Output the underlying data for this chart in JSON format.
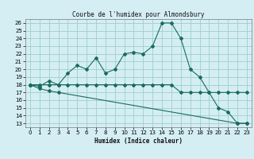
{
  "title": "Courbe de l'humidex pour Almondsbury",
  "xlabel": "Humidex (Indice chaleur)",
  "background_color": "#d4eef4",
  "grid_color": "#9ecfca",
  "line_color": "#1a6b60",
  "xlim": [
    -0.5,
    23.5
  ],
  "ylim": [
    12.5,
    26.5
  ],
  "xticks": [
    0,
    1,
    2,
    3,
    4,
    5,
    6,
    7,
    8,
    9,
    10,
    11,
    12,
    13,
    14,
    15,
    16,
    17,
    18,
    19,
    20,
    21,
    22,
    23
  ],
  "yticks": [
    13,
    14,
    15,
    16,
    17,
    18,
    19,
    20,
    21,
    22,
    23,
    24,
    25,
    26
  ],
  "line1_x": [
    0,
    1,
    2,
    3,
    4,
    5,
    6,
    7,
    8,
    9,
    10,
    11,
    12,
    13,
    14,
    15,
    16,
    17,
    18,
    19,
    20,
    21,
    22,
    23
  ],
  "line1_y": [
    18,
    18,
    18,
    18,
    18,
    18,
    18,
    18,
    18,
    18,
    18,
    18,
    18,
    18,
    18,
    18,
    17,
    17,
    17,
    17,
    17,
    17,
    17,
    17
  ],
  "line2_x": [
    0,
    1,
    2,
    3,
    4,
    5,
    6,
    7,
    8,
    9,
    10,
    11,
    12,
    13,
    14,
    15,
    16,
    17,
    18,
    19,
    20,
    21,
    22,
    23
  ],
  "line2_y": [
    18,
    17.8,
    18.5,
    18,
    19.5,
    20.5,
    20,
    21.5,
    19.5,
    20,
    22,
    22.2,
    22,
    23,
    26,
    26,
    24,
    20,
    19,
    17,
    15,
    14.5,
    13,
    13
  ],
  "line3_x": [
    0,
    1,
    2,
    3,
    22,
    23
  ],
  "line3_y": [
    18,
    17.5,
    17.2,
    17.0,
    13,
    13
  ]
}
